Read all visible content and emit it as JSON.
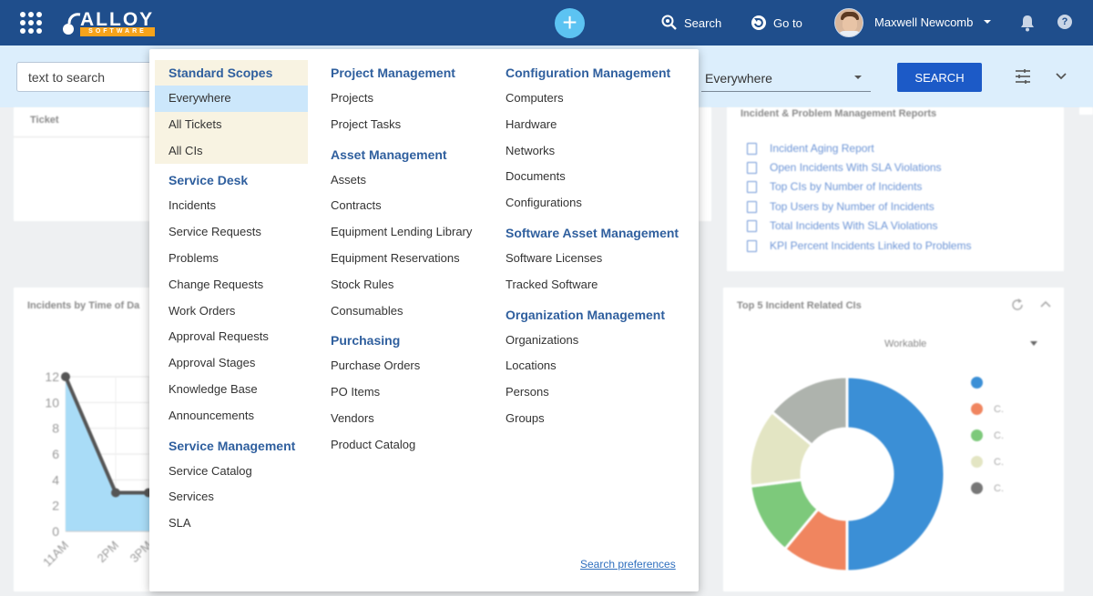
{
  "app": {
    "logo_text": "ALLOY",
    "logo_sub": "SOFTWARE"
  },
  "topbar": {
    "search_label": "Search",
    "goto_label": "Go to",
    "user_name": "Maxwell Newcomb",
    "help_glyph": "?"
  },
  "searchbar": {
    "input_value": "text to search",
    "scope_value": "Everywhere",
    "search_button": "SEARCH"
  },
  "background": {
    "ticket_header": "Ticket",
    "reports_title": "Incident & Problem Management Reports",
    "reports": [
      "Incident Aging Report",
      "Open Incidents With SLA Violations",
      "Top CIs by Number of Incidents",
      "Top Users by Number of Incidents",
      "Total Incidents With SLA Violations",
      "KPI Percent Incidents Linked to Problems"
    ],
    "time_chart_title": "Incidents by Time of Da",
    "cis_chart_title": "Top 5 Incident Related CIs",
    "cis_filter": "Workable",
    "legend_labels": [
      "",
      "C.",
      "C.",
      "C.",
      "C."
    ]
  },
  "chart_data": [
    {
      "type": "line",
      "title": "Incidents by Time of Da",
      "categories": [
        "11AM",
        "2PM",
        "3PM"
      ],
      "values": [
        12,
        3,
        3
      ],
      "ylim": [
        0,
        12
      ],
      "y_ticks": [
        0,
        2,
        4,
        6,
        8,
        10,
        12
      ],
      "grid": true
    },
    {
      "type": "pie",
      "title": "Top 5 Incident Related CIs",
      "values": [
        50,
        11,
        12,
        13,
        14
      ],
      "colors": [
        "#3b8fd6",
        "#f0855f",
        "#7dc97b",
        "#e3e5c3",
        "#aeb3ad"
      ]
    }
  ],
  "menu": {
    "columns": [
      {
        "sections": [
          {
            "title": "Standard Scopes",
            "items": [
              "Everywhere",
              "All Tickets",
              "All CIs"
            ]
          },
          {
            "title": "Service Desk",
            "items": [
              "Incidents",
              "Service Requests",
              "Problems",
              "Change Requests",
              "Work Orders",
              "Approval Requests",
              "Approval Stages",
              "Knowledge Base",
              "Announcements"
            ]
          },
          {
            "title": "Service Management",
            "items": [
              "Service Catalog",
              "Services",
              "SLA"
            ]
          }
        ]
      },
      {
        "sections": [
          {
            "title": "Project Management",
            "items": [
              "Projects",
              "Project Tasks"
            ]
          },
          {
            "title": "Asset Management",
            "items": [
              "Assets",
              "Contracts",
              "Equipment Lending Library",
              "Equipment Reservations",
              "Stock Rules",
              "Consumables"
            ]
          },
          {
            "title": "Purchasing",
            "items": [
              "Purchase Orders",
              "PO Items",
              "Vendors",
              "Product Catalog"
            ]
          }
        ]
      },
      {
        "sections": [
          {
            "title": "Configuration Management",
            "items": [
              "Computers",
              "Hardware",
              "Networks",
              "Documents",
              "Configurations"
            ]
          },
          {
            "title": "Software Asset Management",
            "items": [
              "Software Licenses",
              "Tracked Software"
            ]
          },
          {
            "title": "Organization Management",
            "items": [
              "Organizations",
              "Locations",
              "Persons",
              "Groups"
            ]
          }
        ]
      }
    ],
    "selected_item": "Everywhere",
    "search_preferences": "Search preferences"
  },
  "colors": {
    "topbar": "#1f4e8c",
    "accent": "#1c5ac7",
    "section_title": "#2f5f9e",
    "plus_button": "#5cc3f2"
  }
}
